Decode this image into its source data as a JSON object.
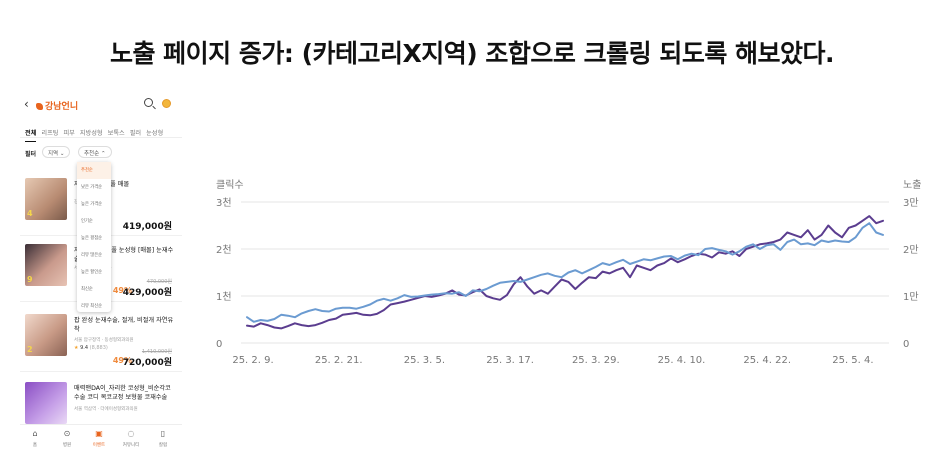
{
  "headline": "노출 페이지 증가: (카테고리X지역) 조합으로 크롤링 되도록 해보았다.",
  "app": {
    "logo": "강남언니",
    "tabs": [
      "전체",
      "리프팅",
      "피부",
      "지방성형",
      "보톡스",
      "필러",
      "눈성형"
    ],
    "filter_label": "필터",
    "region_chip": "지역",
    "sort_chip": "추천순",
    "sort_options": [
      "추천순",
      "낮은 가격순",
      "높은 가격순",
      "인기순",
      "높은 평점순",
      "리뷰 많은순",
      "높은 할인순",
      "최신순",
      "리뷰 최신순"
    ],
    "items": [
      {
        "title": "자연유착 쌍꺼풀 매몰",
        "sub": "강남역 | 강남미의원",
        "badge": "4",
        "rating": "",
        "old_price": "",
        "discount": "",
        "price": "419,000원"
      },
      {
        "title": "자연유착_쌍꺼풀 눈성형 [매몰] 눈재수술",
        "sub": "서울 | 강남성형외과",
        "badge": "9",
        "rating": "",
        "old_price": "470,000원",
        "discount": "49%",
        "price": "429,000원"
      },
      {
        "title": "팝 완성 눈재수술, 절개, 비절개 자연유착",
        "sub": "서울 압구정역 · 동성형외과의원",
        "badge": "2",
        "rating": "9.4",
        "rating_count": "(8,883)",
        "old_price": "1,410,000원",
        "discount": "49%",
        "price": "720,000원"
      },
      {
        "title": "매력맨DA이_자리한 코성형_비순각코 수술 코디 복코교정 보형물 코재수술",
        "sub": "서울 역삼역 · 더에이성형외과의원",
        "badge": "",
        "rating": "",
        "old_price": "",
        "discount": "",
        "price": ""
      }
    ],
    "nav": [
      {
        "label": "홈",
        "icon": "home-icon"
      },
      {
        "label": "병원",
        "icon": "location-icon"
      },
      {
        "label": "이벤트",
        "icon": "gift-icon"
      },
      {
        "label": "커뮤니티",
        "icon": "chat-icon"
      },
      {
        "label": "칼럼",
        "icon": "column-icon"
      }
    ],
    "accent": "#e8641e"
  },
  "chart_data": {
    "type": "line",
    "left_axis_title": "클릭수",
    "right_axis_title": "노출",
    "left_ticks": [
      "0",
      "1천",
      "2천",
      "3천"
    ],
    "right_ticks": [
      "0",
      "1만",
      "2만",
      "3만"
    ],
    "ylim_left": [
      0,
      3000
    ],
    "ylim_right": [
      0,
      30000
    ],
    "x_ticks": [
      "25. 2. 9.",
      "25. 2. 21.",
      "25. 3. 5.",
      "25. 3. 17.",
      "25. 3. 29.",
      "25. 4. 10.",
      "25. 4. 22.",
      "25. 5. 4."
    ],
    "grid": true,
    "series": [
      {
        "name": "",
        "axis": "left",
        "color": "#5b3d8f",
        "values": [
          370,
          350,
          420,
          380,
          330,
          310,
          360,
          420,
          380,
          360,
          380,
          430,
          490,
          520,
          600,
          620,
          640,
          600,
          590,
          620,
          700,
          820,
          850,
          880,
          920,
          960,
          1000,
          980,
          1010,
          1050,
          1120,
          1030,
          1010,
          1080,
          1140,
          1000,
          950,
          920,
          1020,
          1250,
          1400,
          1200,
          1050,
          1120,
          1050,
          1200,
          1350,
          1300,
          1150,
          1280,
          1400,
          1380,
          1520,
          1480,
          1550,
          1600,
          1400,
          1650,
          1600,
          1550,
          1650,
          1700,
          1800,
          1720,
          1780,
          1850,
          1900,
          1880,
          1820,
          1930,
          1900,
          1950,
          1850,
          2000,
          2050,
          2100,
          2120,
          2150,
          2200,
          2350,
          2300,
          2250,
          2400,
          2200,
          2300,
          2500,
          2350,
          2250,
          2450,
          2500,
          2600,
          2700,
          2550,
          2600
        ]
      },
      {
        "name": "",
        "axis": "right",
        "color": "#6b9bd1",
        "values": [
          5500,
          4500,
          4900,
          4700,
          5100,
          6000,
          5800,
          5500,
          6300,
          6800,
          7200,
          6800,
          6700,
          7300,
          7500,
          7500,
          7300,
          7700,
          8200,
          9000,
          9400,
          9000,
          9500,
          10200,
          9800,
          9900,
          10100,
          10300,
          10400,
          10600,
          10500,
          10800,
          10000,
          11200,
          11000,
          11500,
          12200,
          12800,
          13000,
          13200,
          13000,
          13500,
          14000,
          14500,
          14800,
          14300,
          14000,
          15000,
          15500,
          14800,
          15500,
          16200,
          17000,
          16600,
          17200,
          17700,
          16800,
          17300,
          17800,
          17600,
          18000,
          18400,
          18500,
          17800,
          18600,
          19000,
          18700,
          20000,
          20200,
          19800,
          19500,
          18800,
          19500,
          20500,
          21000,
          20000,
          20800,
          21000,
          19800,
          21500,
          22000,
          21000,
          21200,
          20800,
          21800,
          21500,
          21800,
          21600,
          21500,
          22500,
          24500,
          25500,
          23500,
          23000
        ]
      }
    ]
  }
}
